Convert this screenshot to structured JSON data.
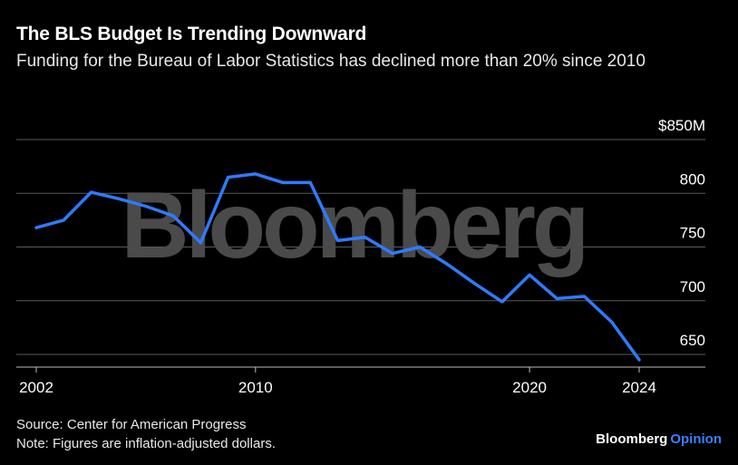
{
  "header": {
    "title": "The BLS Budget Is Trending Downward",
    "subtitle": "Funding for the Bureau of Labor Statistics has declined more than 20% since 2010"
  },
  "footer": {
    "source": "Source: Center for American Progress",
    "note": "Note: Figures are inflation-adjusted dollars.",
    "brand_name": "Bloomberg",
    "brand_section": "Opinion"
  },
  "watermark": "Bloomberg",
  "colors": {
    "background": "#000000",
    "line": "#2e7bff",
    "grid": "#5a5a5a",
    "text": "#ffffff",
    "watermark": "#4a4a4a",
    "brand_accent": "#3d7fff"
  },
  "chart_data": {
    "type": "line",
    "title": "The BLS Budget Is Trending Downward",
    "subtitle": "Funding for the Bureau of Labor Statistics has declined more than 20% since 2010",
    "xlabel": "",
    "ylabel": "",
    "x": [
      2002,
      2003,
      2004,
      2005,
      2006,
      2007,
      2008,
      2009,
      2010,
      2011,
      2012,
      2013,
      2014,
      2015,
      2016,
      2017,
      2018,
      2019,
      2020,
      2021,
      2022,
      2023,
      2024
    ],
    "series": [
      {
        "values": [
          768,
          775,
          801,
          795,
          788,
          779,
          754,
          815,
          818,
          810,
          810,
          756,
          759,
          744,
          750,
          734,
          716,
          699,
          724,
          702,
          704,
          680,
          645
        ]
      }
    ],
    "xlim": [
      2002,
      2024
    ],
    "ylim": [
      640,
      850
    ],
    "x_ticks": [
      2002,
      2010,
      2020,
      2024
    ],
    "x_tick_labels": [
      "2002",
      "2010",
      "2020",
      "2024"
    ],
    "y_ticks": [
      650,
      700,
      750,
      800,
      850
    ],
    "y_tick_labels": [
      "650",
      "700",
      "750",
      "800",
      "$850M"
    ],
    "grid": "horizontal",
    "legend": "none"
  }
}
